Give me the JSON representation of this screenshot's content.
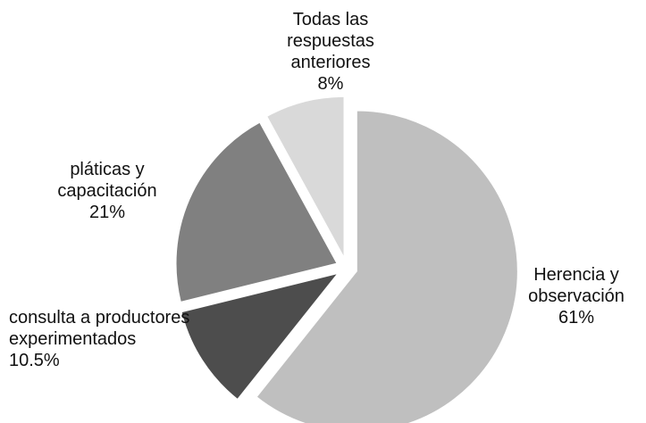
{
  "chart_data": {
    "type": "pie",
    "categories": [
      "Herencia y observación",
      "consulta a productores experimentados",
      "pláticas y capacitación",
      "Todas las respuestas anteriores"
    ],
    "values": [
      61,
      10.5,
      21,
      8
    ],
    "value_labels": [
      "61%",
      "10.5%",
      "21%",
      "8%"
    ],
    "colors": [
      "#bfbfbf",
      "#4d4d4d",
      "#808080",
      "#d9d9d9"
    ]
  }
}
